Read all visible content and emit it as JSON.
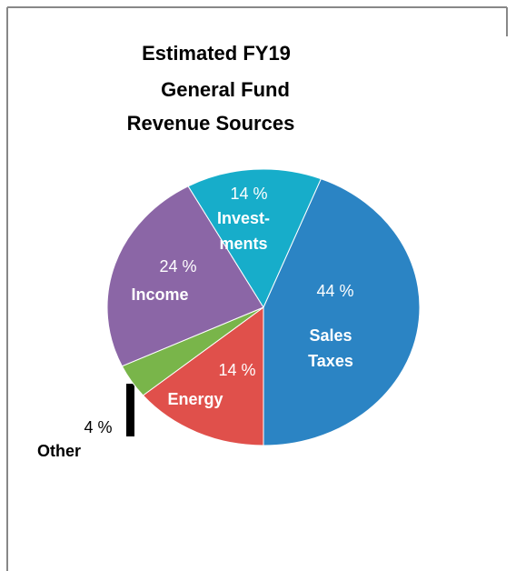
{
  "chart_data": {
    "type": "pie",
    "title": [
      "Estimated FY19",
      "General Fund",
      "Revenue Sources"
    ],
    "categories": [
      "Sales Taxes",
      "Energy",
      "Other",
      "Income",
      "Invest-ments"
    ],
    "values": [
      44,
      14,
      4,
      24,
      14
    ],
    "value_labels": [
      "44 %",
      "14 %",
      "4 %",
      "24 %",
      "14 %"
    ],
    "colors": [
      "#2b84c4",
      "#e0504b",
      "#79b54a",
      "#8b66a6",
      "#17adca"
    ]
  }
}
